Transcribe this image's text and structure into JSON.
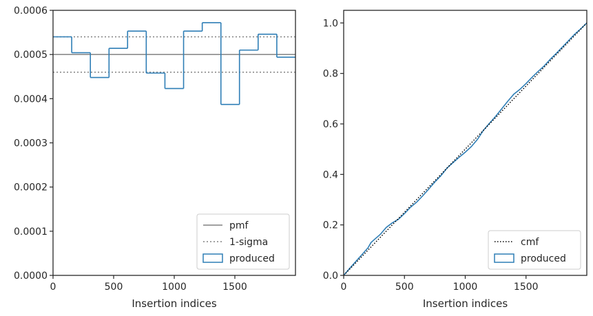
{
  "colors": {
    "produced": "#2e7eb6",
    "pmf": "#808080",
    "sigma": "#808080",
    "cmf": "#000000",
    "axes": "#262626",
    "legend_border": "#cccccc"
  },
  "chart_data": [
    {
      "type": "step",
      "xlabel": "Insertion indices",
      "ylabel": "",
      "xlim": [
        0,
        2000
      ],
      "ylim": [
        0,
        0.0006
      ],
      "xticks": [
        0,
        500,
        1000,
        1500
      ],
      "xtick_labels": [
        "0",
        "500",
        "1000",
        "1500"
      ],
      "yticks": [
        0,
        0.0001,
        0.0002,
        0.0003,
        0.0004,
        0.0005,
        0.0006
      ],
      "ytick_labels": [
        "0.0000",
        "0.0001",
        "0.0002",
        "0.0003",
        "0.0004",
        "0.0005",
        "0.0006"
      ],
      "pmf": 0.0005,
      "sigma": [
        0.00046,
        0.00054
      ],
      "bin_edges": [
        0,
        154,
        308,
        462,
        615,
        769,
        923,
        1077,
        1231,
        1385,
        1538,
        1692,
        1846,
        2000
      ],
      "produced": [
        0.00054,
        0.000504,
        0.000448,
        0.000514,
        0.000553,
        0.000458,
        0.000423,
        0.000553,
        0.000572,
        0.000387,
        0.00051,
        0.000546,
        0.000494
      ],
      "legend": [
        "pmf",
        "1-sigma",
        "produced"
      ],
      "legend_position": "lower-right",
      "grid": false
    },
    {
      "type": "line",
      "xlabel": "Insertion indices",
      "ylabel": "",
      "xlim": [
        0,
        2000
      ],
      "ylim": [
        0,
        1.05
      ],
      "xticks": [
        0,
        500,
        1000,
        1500
      ],
      "xtick_labels": [
        "0",
        "500",
        "1000",
        "1500"
      ],
      "yticks": [
        0,
        0.2,
        0.4,
        0.6,
        0.8,
        1.0
      ],
      "ytick_labels": [
        "0.0",
        "0.2",
        "0.4",
        "0.6",
        "0.8",
        "1.0"
      ],
      "cmf": {
        "x": [
          0,
          2000
        ],
        "y": [
          0,
          1.0
        ]
      },
      "produced": {
        "x": [
          0,
          50,
          100,
          150,
          200,
          225,
          250,
          300,
          350,
          400,
          450,
          500,
          550,
          600,
          650,
          700,
          750,
          800,
          850,
          900,
          950,
          1000,
          1050,
          1100,
          1150,
          1200,
          1250,
          1300,
          1350,
          1400,
          1450,
          1500,
          1550,
          1600,
          1650,
          1700,
          1750,
          1800,
          1850,
          1900,
          1950,
          2000
        ],
        "y": [
          0,
          0.028,
          0.055,
          0.082,
          0.109,
          0.13,
          0.141,
          0.162,
          0.19,
          0.208,
          0.222,
          0.245,
          0.27,
          0.29,
          0.315,
          0.342,
          0.37,
          0.395,
          0.425,
          0.447,
          0.468,
          0.488,
          0.51,
          0.538,
          0.575,
          0.603,
          0.63,
          0.66,
          0.69,
          0.718,
          0.737,
          0.76,
          0.785,
          0.808,
          0.83,
          0.856,
          0.88,
          0.905,
          0.93,
          0.955,
          0.977,
          1.0
        ]
      },
      "legend": [
        "cmf",
        "produced"
      ],
      "legend_position": "lower-right",
      "grid": false
    }
  ]
}
